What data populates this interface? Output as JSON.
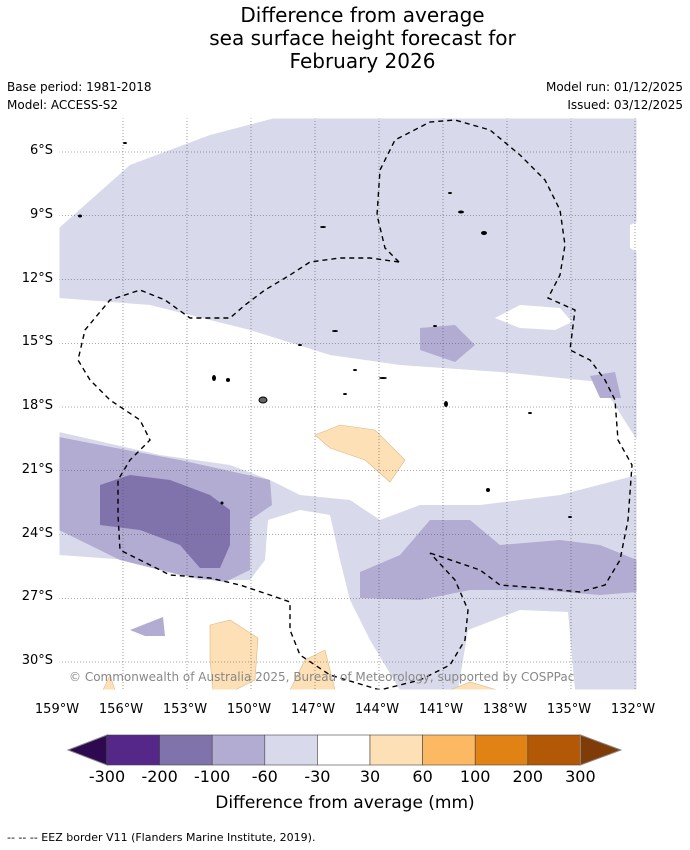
{
  "title": {
    "line1": "Difference from average",
    "line2": "sea surface height forecast for",
    "line3": "February 2026"
  },
  "meta": {
    "base_period": "Base period: 1981-2018",
    "model": "Model: ACCESS-S2",
    "model_run": "Model run: 01/12/2025",
    "issued": "Issued: 03/12/2025"
  },
  "map": {
    "lat_labels": [
      "6°S",
      "9°S",
      "12°S",
      "15°S",
      "18°S",
      "21°S",
      "24°S",
      "27°S",
      "30°S"
    ],
    "lon_labels": [
      "159°W",
      "156°W",
      "153°W",
      "150°W",
      "147°W",
      "144°W",
      "141°W",
      "138°W",
      "135°W",
      "132°W"
    ],
    "copyright": "© Commonwealth of Australia 2025, Bureau of Meteorology, supported by COSPPac"
  },
  "colorbar": {
    "title": "Difference from average (mm)",
    "ticks": [
      "-300",
      "-200",
      "-100",
      "-60",
      "-30",
      "30",
      "60",
      "100",
      "200",
      "300"
    ],
    "colors": [
      "#2d0a4f",
      "#542788",
      "#8073ac",
      "#b2abd2",
      "#d8daeb",
      "#ffffff",
      "#fee0b6",
      "#fdb863",
      "#e08214",
      "#b35806",
      "#7f3b08"
    ]
  },
  "footer": "--  --  -- EEZ border V11 (Flanders Marine Institute, 2019)."
}
